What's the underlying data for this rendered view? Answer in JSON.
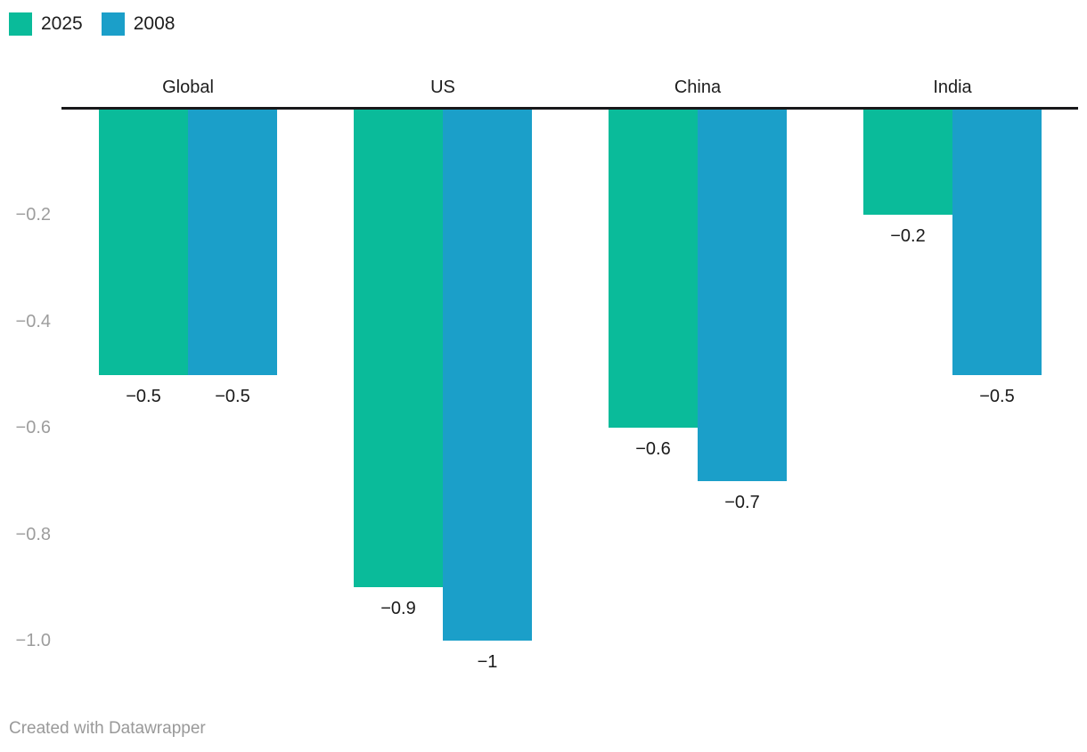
{
  "footer": {
    "attribution": "Created with Datawrapper"
  },
  "colors": {
    "series_2025": "#0abb9a",
    "series_2008": "#1b9fc9",
    "baseline": "#18181a",
    "tick_text": "#9d9d9d",
    "label_text": "#1a1a1a",
    "footer_text": "#999999"
  },
  "chart_data": {
    "type": "bar",
    "title": "",
    "categories": [
      "Global",
      "US",
      "China",
      "India"
    ],
    "series": [
      {
        "name": "2025",
        "color": "#0abb9a",
        "values": [
          -0.5,
          -0.9,
          -0.6,
          -0.2
        ],
        "labels": [
          "−0.5",
          "−0.9",
          "−0.6",
          "−0.2"
        ]
      },
      {
        "name": "2008",
        "color": "#1b9fc9",
        "values": [
          -0.5,
          -1,
          -0.7,
          -0.5
        ],
        "labels": [
          "−0.5",
          "−1",
          "−0.7",
          "−0.5"
        ]
      }
    ],
    "orientation": "vertical",
    "bars_direction": "down-from-zero",
    "ylim": [
      -1.05,
      0
    ],
    "yticks": [
      {
        "value": -0.2,
        "label": "−0.2"
      },
      {
        "value": -0.4,
        "label": "−0.4"
      },
      {
        "value": -0.6,
        "label": "−0.6"
      },
      {
        "value": -0.8,
        "label": "−0.8"
      },
      {
        "value": -1.0,
        "label": "−1.0"
      }
    ],
    "grid": false,
    "legend_position": "top-left",
    "value_labels_shown": true
  }
}
